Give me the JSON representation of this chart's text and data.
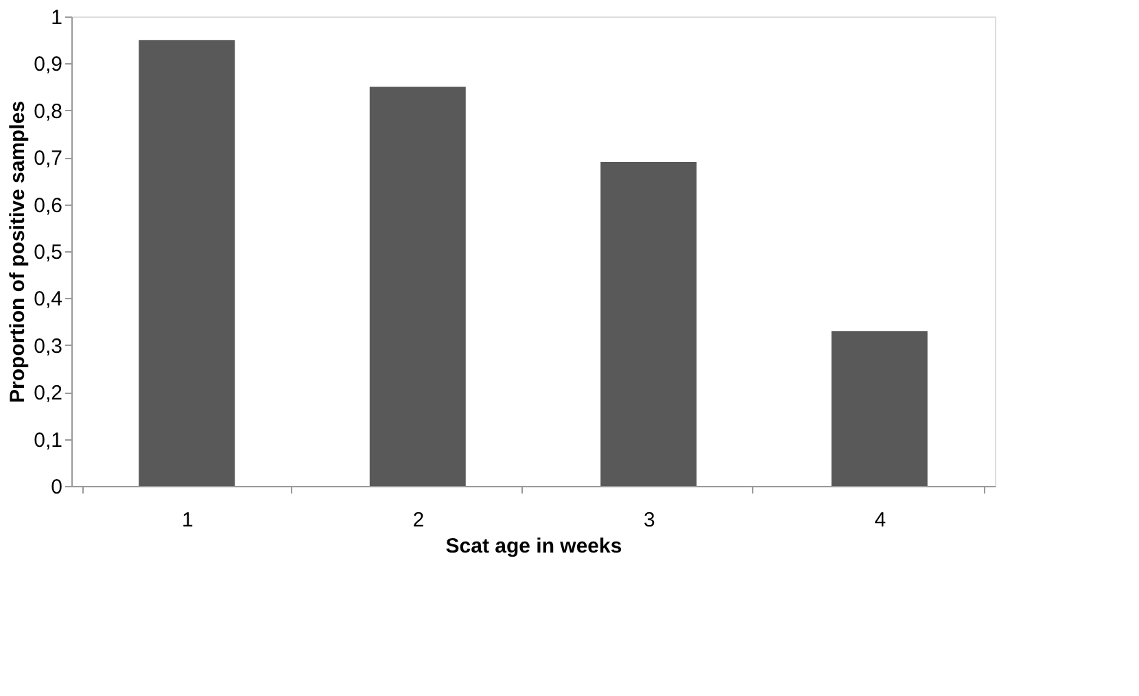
{
  "chart_data": {
    "type": "bar",
    "xlabel": "Scat age in weeks",
    "ylabel": "Proportion of positive samples",
    "categories": [
      "1",
      "2",
      "3",
      "4"
    ],
    "values": [
      0.95,
      0.85,
      0.69,
      0.33
    ],
    "color": "#595959",
    "ylim": [
      0,
      1
    ],
    "yticks": [
      0,
      {
        "value": 0.1,
        "label": "0,1"
      },
      {
        "value": 0.2,
        "label": "0,2"
      },
      {
        "value": 0.3,
        "label": "0,3"
      },
      {
        "value": 0.4,
        "label": "0,4"
      },
      {
        "value": 0.5,
        "label": "0,5"
      },
      {
        "value": 0.6,
        "label": "0,6"
      },
      {
        "value": 0.7,
        "label": "0,7"
      },
      {
        "value": 0.8,
        "label": "0,8"
      },
      {
        "value": 0.9,
        "label": "0,9"
      },
      1
    ],
    "grid": false
  }
}
